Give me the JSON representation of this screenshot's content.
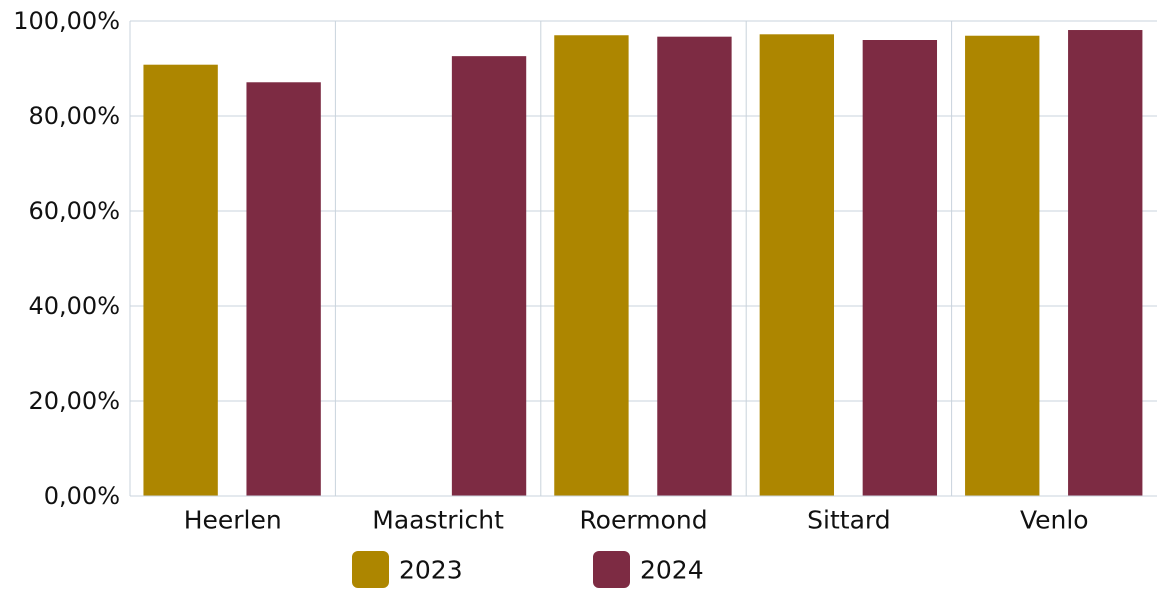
{
  "chart_data": {
    "type": "bar",
    "categories": [
      "Heerlen",
      "Maastricht",
      "Roermond",
      "Sittard",
      "Venlo"
    ],
    "series": [
      {
        "name": "2023",
        "color": "#AD8600",
        "values": [
          90.8,
          null,
          97.0,
          97.2,
          96.9
        ]
      },
      {
        "name": "2024",
        "color": "#7D2B43",
        "values": [
          87.1,
          92.6,
          96.7,
          96.0,
          98.1
        ]
      }
    ],
    "ylim": [
      0,
      100
    ],
    "y_ticks": [
      0,
      20,
      40,
      60,
      80,
      100
    ],
    "y_tick_labels": [
      "0,00%",
      "20,00%",
      "40,00%",
      "60,00%",
      "80,00%",
      "100,00%"
    ],
    "title": "",
    "xlabel": "",
    "ylabel": "",
    "grid": true,
    "legend_position": "bottom"
  }
}
